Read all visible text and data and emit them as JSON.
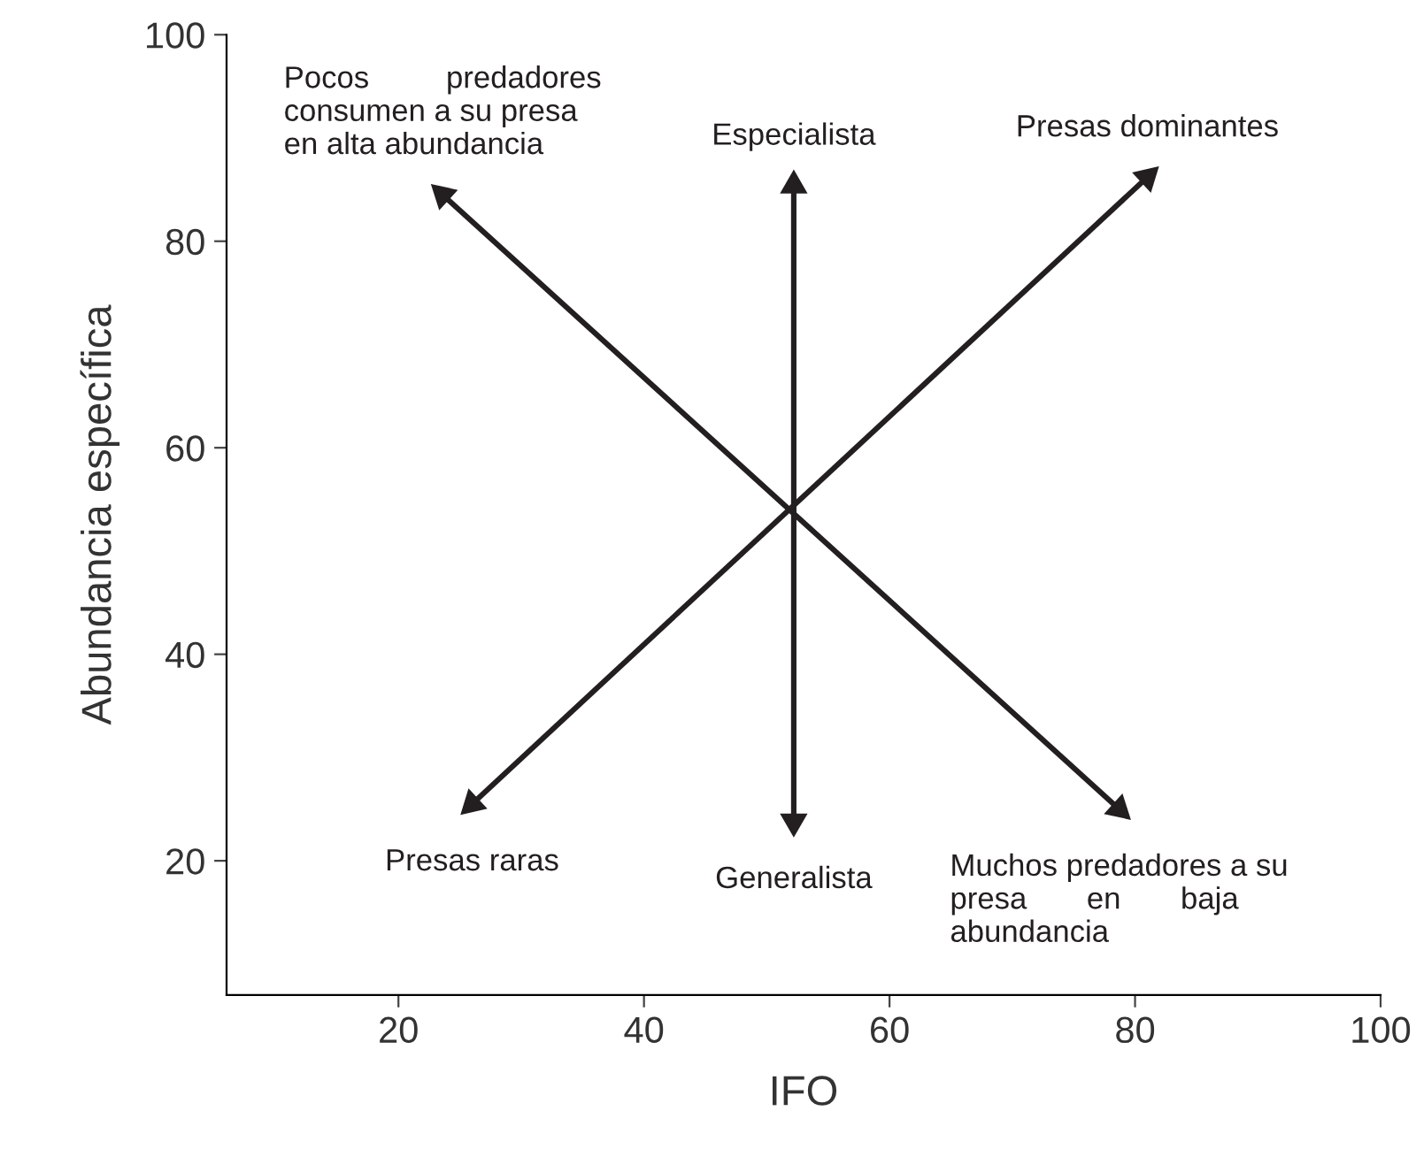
{
  "chart_data": {
    "type": "line",
    "xlabel": "IFO",
    "ylabel": "Abundancia específica",
    "xlim": [
      6,
      100
    ],
    "ylim": [
      7,
      100
    ],
    "xticks": [
      20,
      40,
      60,
      80,
      100
    ],
    "yticks": [
      20,
      40,
      60,
      80,
      100
    ],
    "grid": false,
    "marker": "triangle",
    "line_style": "solid",
    "series": [
      {
        "color": "#231f20",
        "x": [
          23.6,
          78.7
        ],
        "values": [
          84.5,
          25
        ]
      },
      {
        "color": "#231f20",
        "x": [
          52.2,
          52.2
        ],
        "values": [
          85.4,
          23.8
        ]
      },
      {
        "color": "#231f20",
        "x": [
          26,
          81
        ],
        "values": [
          25.5,
          86.2
        ]
      }
    ],
    "annotations": [
      {
        "text": "Pocos         predadores\nconsumen a su presa\nen alta abundancia",
        "x": 23.6,
        "y": 84.5
      },
      {
        "text": "Especialista",
        "x": 52.2,
        "y": 85.4
      },
      {
        "text": "Presas dominantes",
        "x": 81,
        "y": 86.2
      },
      {
        "text": "Presas raras",
        "x": 26,
        "y": 25.5
      },
      {
        "text": "Generalista",
        "x": 52.2,
        "y": 23.8
      },
      {
        "text": "Muchos predadores a su\npresa       en       baja\nabundancia",
        "x": 78.7,
        "y": 25
      }
    ]
  }
}
